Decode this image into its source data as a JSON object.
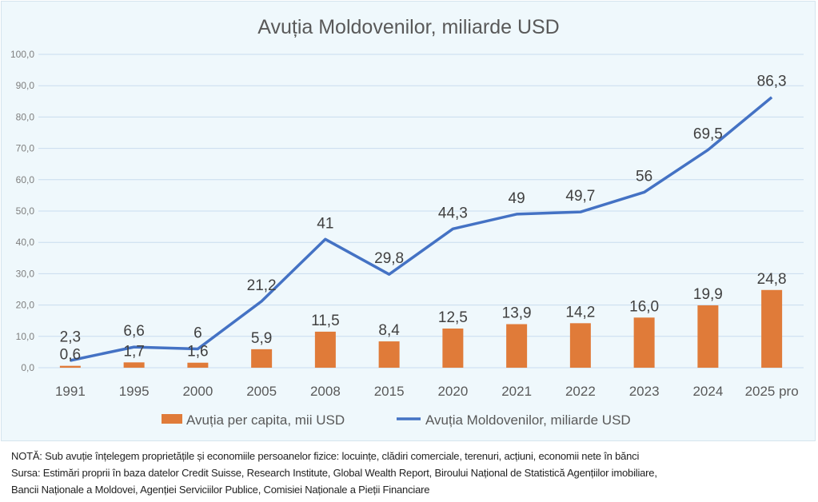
{
  "chart_data": {
    "type": "bar+line",
    "title": "Avuția Moldovenilor, miliarde USD",
    "categories": [
      "1991",
      "1995",
      "2000",
      "2005",
      "2008",
      "2015",
      "2020",
      "2021",
      "2022",
      "2023",
      "2024",
      "2025 pro"
    ],
    "series": [
      {
        "name": "Avuția per capita, mii USD",
        "type": "bar",
        "color": "#e07b39",
        "values": [
          0.6,
          1.7,
          1.6,
          5.9,
          11.5,
          8.4,
          12.5,
          13.9,
          14.2,
          16.0,
          19.9,
          24.8
        ],
        "labels": [
          "0,6",
          "1,7",
          "1,6",
          "5,9",
          "11,5",
          "8,4",
          "12,5",
          "13,9",
          "14,2",
          "16,0",
          "19,9",
          "24,8"
        ]
      },
      {
        "name": "Avuția Moldovenilor, miliarde USD",
        "type": "line",
        "color": "#4472c4",
        "values": [
          2.3,
          6.6,
          6,
          21.2,
          41,
          29.8,
          44.3,
          49,
          49.7,
          56,
          69.5,
          86.3
        ],
        "labels": [
          "2,3",
          "6,6",
          "6",
          "21,2",
          "41",
          "29,8",
          "44,3",
          "49",
          "49,7",
          "56",
          "69,5",
          "86,3"
        ]
      }
    ],
    "ylim": [
      0,
      100
    ],
    "yticks": [
      "0,0",
      "10,0",
      "20,0",
      "30,0",
      "40,0",
      "50,0",
      "60,0",
      "70,0",
      "80,0",
      "90,0",
      "100,0"
    ],
    "grid": true,
    "legend": "bottom"
  },
  "notes": {
    "line1": "NOTĂ: Sub avuție înțelegem proprietățile și economiile persoanelor fizice: locuințe, clădiri comerciale, terenuri, acțiuni, economii nete în bănci",
    "line2": "Sursa: Estimări proprii în baza datelor Credit Suisse, Research Institute, Global Wealth Report, Biroului Național de Statistică Agențiilor imobiliare,",
    "line3": "Bancii Naționale a Moldovei, Agenției Serviciilor Publice, Comisiei  Naționale a Pieții Financiare"
  }
}
